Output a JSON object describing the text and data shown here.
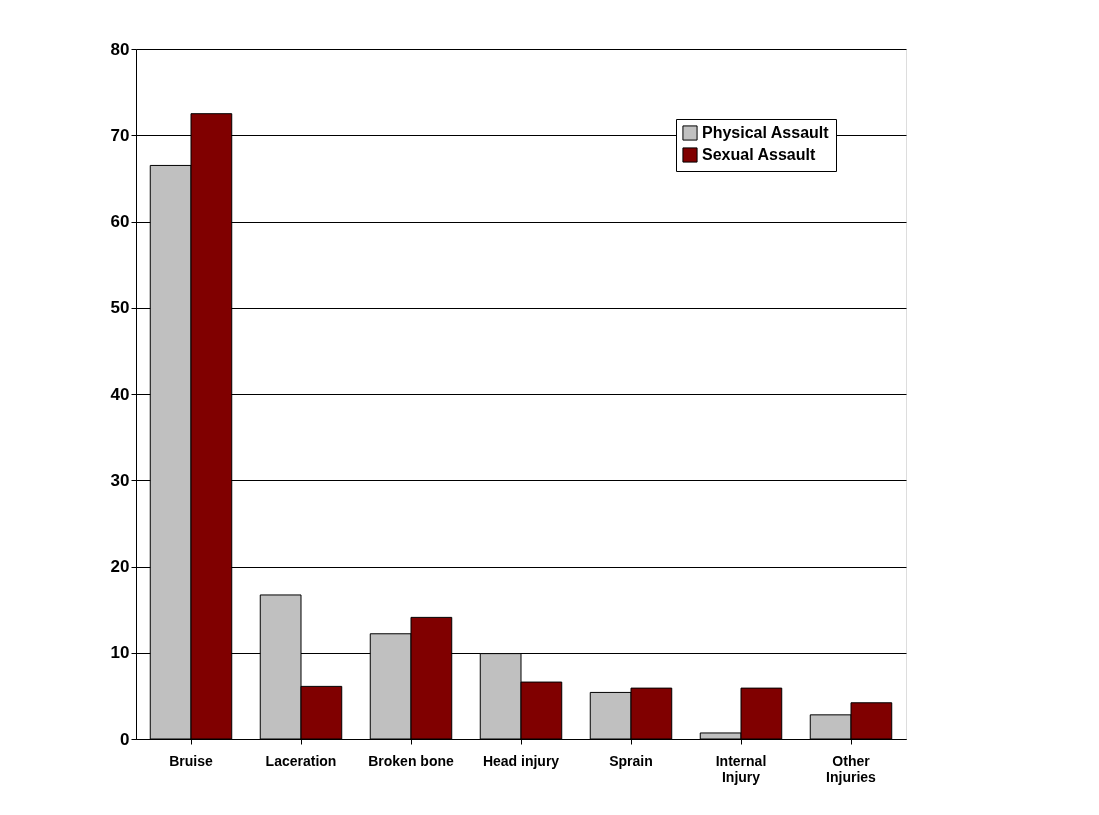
{
  "chart_data": {
    "type": "bar",
    "categories": [
      "Bruise",
      "Laceration",
      "Broken bone",
      "Head injury",
      "Sprain",
      "Internal Injury",
      "Other Injuries"
    ],
    "series": [
      {
        "name": "Physical Assault",
        "color": "#c0c0c0",
        "values": [
          66.5,
          16.7,
          12.2,
          9.9,
          5.4,
          0.7,
          2.8
        ]
      },
      {
        "name": "Sexual Assault",
        "color": "#800000",
        "values": [
          72.5,
          6.1,
          14.1,
          6.6,
          5.9,
          5.9,
          4.2
        ]
      }
    ],
    "ylim": [
      0,
      80
    ],
    "yticks": [
      0,
      10,
      20,
      30,
      40,
      50,
      60,
      70,
      80
    ],
    "grid": "y",
    "legend": "top right"
  }
}
